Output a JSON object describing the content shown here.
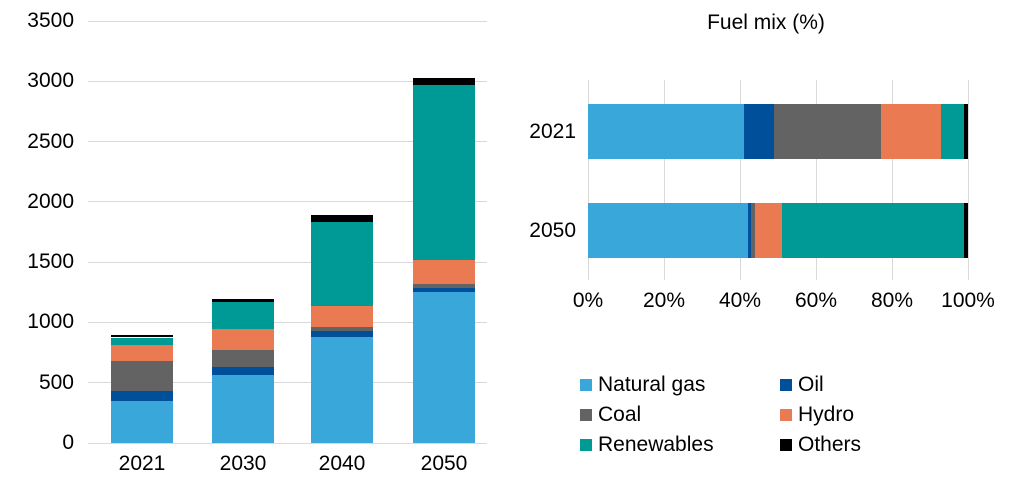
{
  "colors": {
    "natural_gas": "#3AA7DB",
    "oil": "#004F9B",
    "coal": "#636363",
    "hydro": "#EA7A52",
    "renewables": "#009A96",
    "others": "#000000",
    "gridline": "#D9D9D9",
    "text": "#000000"
  },
  "chart_data": [
    {
      "id": "generation-stacked-column",
      "type": "bar",
      "stacked": true,
      "orientation": "vertical",
      "title": "",
      "categories": [
        "2021",
        "2030",
        "2040",
        "2050"
      ],
      "series": [
        {
          "name": "Natural gas",
          "color_key": "natural_gas",
          "values": [
            350,
            560,
            880,
            1250
          ]
        },
        {
          "name": "Oil",
          "color_key": "oil",
          "values": [
            80,
            70,
            45,
            35
          ]
        },
        {
          "name": "Coal",
          "color_key": "coal",
          "values": [
            250,
            145,
            35,
            30
          ]
        },
        {
          "name": "Hydro",
          "color_key": "hydro",
          "values": [
            135,
            170,
            180,
            200
          ]
        },
        {
          "name": "Renewables",
          "color_key": "renewables",
          "values": [
            60,
            225,
            690,
            1455
          ]
        },
        {
          "name": "Others",
          "color_key": "others",
          "values": [
            20,
            25,
            60,
            60
          ]
        }
      ],
      "totals": [
        895,
        1195,
        1890,
        3030
      ],
      "ylim": [
        0,
        3500
      ],
      "yticks": [
        0,
        500,
        1000,
        1500,
        2000,
        2500,
        3000,
        3500
      ],
      "grid": true,
      "gridlines": "horizontal"
    },
    {
      "id": "fuel-mix",
      "type": "bar",
      "stacked": true,
      "orientation": "horizontal",
      "title": "Fuel mix (%)",
      "categories": [
        "2021",
        "2050"
      ],
      "series": [
        {
          "name": "Natural gas",
          "color_key": "natural_gas",
          "values": [
            41,
            42
          ]
        },
        {
          "name": "Oil",
          "color_key": "oil",
          "values": [
            8,
            1
          ]
        },
        {
          "name": "Coal",
          "color_key": "coal",
          "values": [
            28,
            1
          ]
        },
        {
          "name": "Hydro",
          "color_key": "hydro",
          "values": [
            16,
            7
          ]
        },
        {
          "name": "Renewables",
          "color_key": "renewables",
          "values": [
            6,
            48
          ]
        },
        {
          "name": "Others",
          "color_key": "others",
          "values": [
            1,
            1
          ]
        }
      ],
      "xlim": [
        0,
        100
      ],
      "xticks": [
        "0%",
        "20%",
        "40%",
        "60%",
        "80%",
        "100%"
      ],
      "grid": true,
      "gridlines": "vertical"
    }
  ],
  "legend": {
    "position": "bottom-right",
    "items": [
      {
        "label": "Natural gas",
        "color_key": "natural_gas"
      },
      {
        "label": "Oil",
        "color_key": "oil"
      },
      {
        "label": "Coal",
        "color_key": "coal"
      },
      {
        "label": "Hydro",
        "color_key": "hydro"
      },
      {
        "label": "Renewables",
        "color_key": "renewables"
      },
      {
        "label": "Others",
        "color_key": "others"
      }
    ]
  }
}
